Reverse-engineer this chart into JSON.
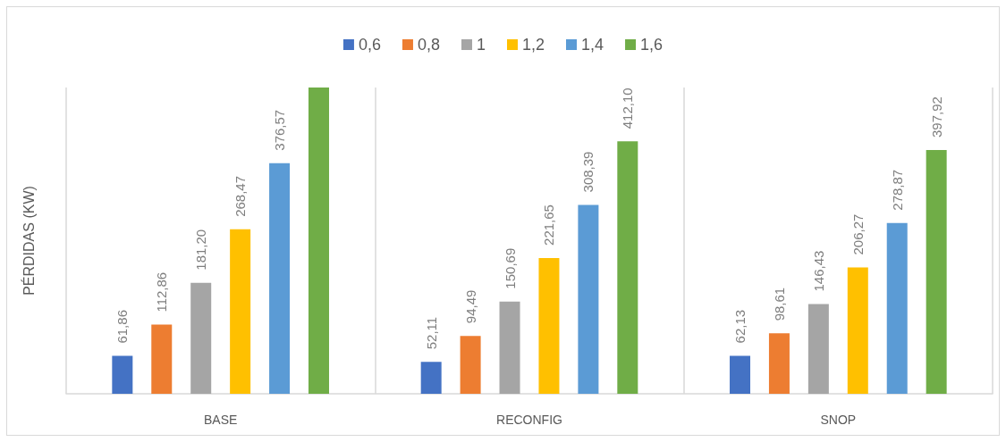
{
  "chart_data": {
    "type": "bar",
    "ylabel": "PÉRDIDAS (KW)",
    "categories": [
      "BASE",
      "RECONFIG",
      "SNOP"
    ],
    "series": [
      {
        "name": "0,6",
        "color": "#4472c4",
        "values": [
          61.86,
          52.11,
          62.13
        ],
        "value_labels": [
          "61,86",
          "52,11",
          "62,13"
        ]
      },
      {
        "name": "0,8",
        "color": "#ed7d31",
        "values": [
          112.86,
          94.49,
          98.61
        ],
        "value_labels": [
          "112,86",
          "94,49",
          "98,61"
        ]
      },
      {
        "name": "1",
        "color": "#a5a5a5",
        "values": [
          181.2,
          150.69,
          146.43
        ],
        "value_labels": [
          "181,20",
          "150,69",
          "146,43"
        ]
      },
      {
        "name": "1,2",
        "color": "#ffc000",
        "values": [
          268.47,
          221.65,
          206.27
        ],
        "value_labels": [
          "268,47",
          "221,65",
          "206,27"
        ]
      },
      {
        "name": "1,4",
        "color": "#5b9bd5",
        "values": [
          376.57,
          308.39,
          278.87
        ],
        "value_labels": [
          "376,57",
          "308,39",
          "278,87"
        ]
      },
      {
        "name": "1,6",
        "color": "#70ad47",
        "values": [
          500,
          412.1,
          397.92
        ],
        "value_labels": [
          null,
          "412,10",
          "397,92"
        ]
      }
    ],
    "ylim": [
      0,
      500
    ],
    "grid": "x",
    "legend": "top",
    "tick_labels": "x"
  }
}
